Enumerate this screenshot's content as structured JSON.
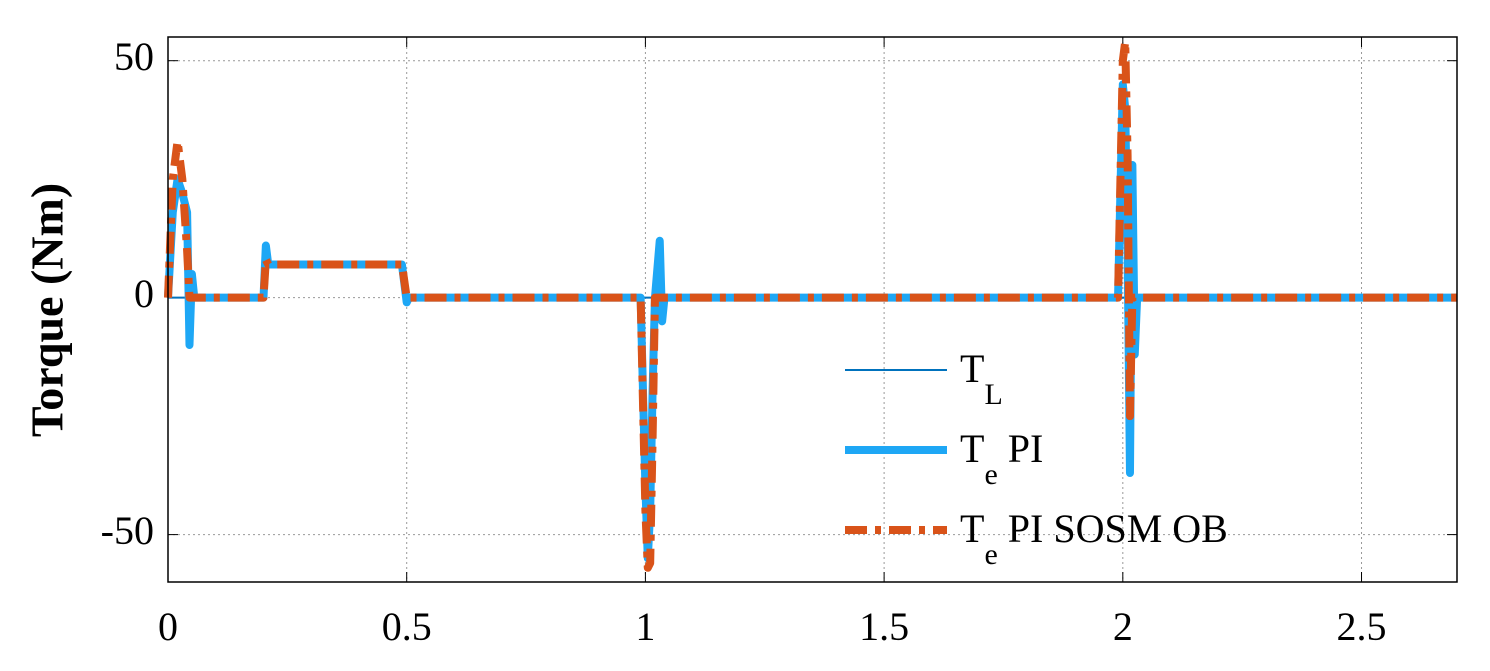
{
  "chart_data": {
    "type": "line",
    "ylabel": "Torque (Nm)",
    "x": [
      0,
      0.01,
      0.02,
      0.03,
      0.04,
      0.045,
      0.05,
      0.055,
      0.06,
      0.1,
      0.19,
      0.2,
      0.205,
      0.21,
      0.3,
      0.4,
      0.49,
      0.5,
      0.505,
      0.51,
      0.6,
      0.8,
      0.99,
      1.0,
      1.005,
      1.01,
      1.015,
      1.02,
      1.03,
      1.035,
      1.04,
      1.05,
      1.1,
      1.5,
      1.99,
      2.0,
      2.005,
      2.01,
      2.015,
      2.02,
      2.025,
      2.03,
      2.04,
      2.1,
      2.5,
      2.7
    ],
    "series": [
      {
        "name": "TL",
        "color": "#0072bd",
        "values": [
          0,
          0,
          0,
          0,
          0,
          0,
          0,
          0,
          0,
          0,
          0,
          0,
          7,
          7,
          7,
          7,
          7,
          0,
          0,
          0,
          0,
          0,
          0,
          0,
          0,
          0,
          0,
          0,
          0,
          0,
          0,
          0,
          0,
          0,
          0,
          0,
          0,
          0,
          0,
          0,
          0,
          0,
          0,
          0,
          0,
          0
        ]
      },
      {
        "name": "Te PI",
        "color": "#1ea7f5",
        "values": [
          0,
          18,
          25,
          22,
          18,
          -10,
          5,
          0,
          0,
          0,
          0,
          0,
          11,
          7,
          7,
          7,
          7,
          -1,
          0,
          0,
          0,
          0,
          0,
          -40,
          -55,
          -45,
          -20,
          0,
          12,
          -5,
          0,
          0,
          0,
          0,
          0,
          45,
          40,
          10,
          -37,
          28,
          -12,
          0,
          0,
          0,
          0,
          0
        ]
      },
      {
        "name": "Te PI SOSM OB",
        "color": "#d95319",
        "values": [
          0,
          25,
          33,
          25,
          10,
          0,
          0,
          0,
          0,
          0,
          0,
          0,
          8,
          7,
          7,
          7,
          7,
          0,
          0,
          0,
          0,
          0,
          0,
          -45,
          -57,
          -56,
          -30,
          0,
          0,
          0,
          0,
          0,
          0,
          0,
          0,
          50,
          54,
          30,
          -25,
          0,
          0,
          0,
          0,
          0,
          0,
          0
        ]
      }
    ],
    "xlim": [
      0,
      2.7
    ],
    "ylim": [
      -60,
      55
    ],
    "xticks": [
      0,
      0.5,
      1,
      1.5,
      2,
      2.5
    ],
    "yticks": [
      -50,
      0,
      50
    ],
    "grid": true
  }
}
